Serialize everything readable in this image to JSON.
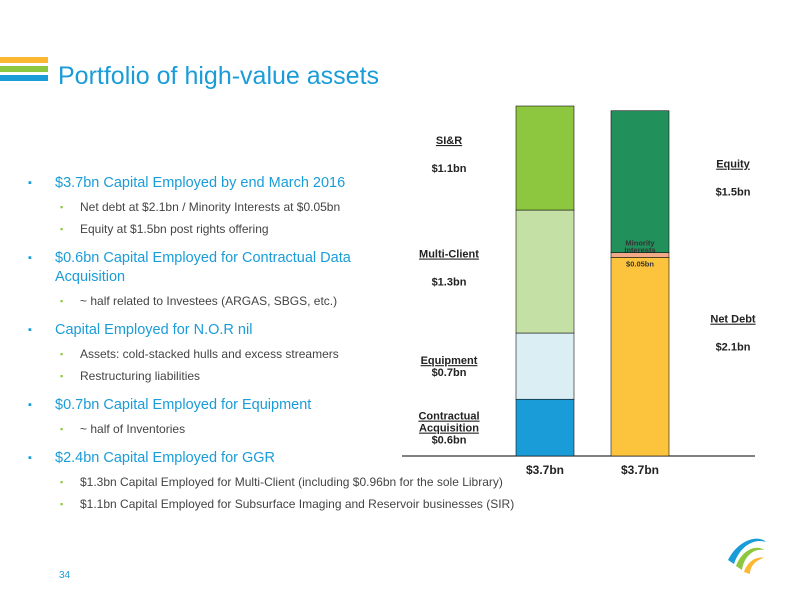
{
  "slide": {
    "title": "Portfolio of high-value assets",
    "page_number": "34",
    "title_bar_colors": [
      "#fcb831",
      "#8dc63f",
      "#1a9cd8"
    ]
  },
  "bullets": [
    {
      "text": "$3.7bn Capital Employed by end March 2016",
      "subs": [
        "Net debt at $2.1bn / Minority Interests at $0.05bn",
        "Equity at $1.5bn post rights offering"
      ]
    },
    {
      "text": "$0.6bn Capital Employed for Contractual Data Acquisition",
      "subs": [
        "~ half related to Investees (ARGAS, SBGS, etc.)"
      ]
    },
    {
      "text": "Capital Employed for N.O.R nil",
      "subs": [
        "Assets: cold-stacked hulls and excess streamers",
        "Restructuring liabilities"
      ]
    },
    {
      "text": "$0.7bn Capital Employed for Equipment",
      "subs": [
        "~ half of Inventories"
      ]
    },
    {
      "text": "$2.4bn Capital Employed for GGR",
      "subs": [
        "$1.3bn Capital Employed for Multi-Client (including $0.96bn for the sole Library)",
        "$1.1bn Capital Employed for Subsurface Imaging and Reservoir businesses (SIR)"
      ]
    }
  ],
  "chart_data": {
    "type": "bar",
    "stacked": true,
    "categories": [
      "$3.7bn",
      "$3.7bn"
    ],
    "ylim": [
      0,
      3.7
    ],
    "series": [
      {
        "name": "Contractual Acquisition",
        "value_label": "$0.6bn",
        "stack": 0,
        "value": 0.6,
        "color": "#1a9cd8"
      },
      {
        "name": "Equipment",
        "value_label": "$0.7bn",
        "stack": 0,
        "value": 0.7,
        "color": "#daeef3"
      },
      {
        "name": "Multi-Client",
        "value_label": "$1.3bn",
        "stack": 0,
        "value": 1.3,
        "color": "#c5e0a4"
      },
      {
        "name": "SI&R",
        "value_label": "$1.1bn",
        "stack": 0,
        "value": 1.1,
        "color": "#8dc63f"
      },
      {
        "name": "Net Debt",
        "value_label": "$2.1bn",
        "stack": 1,
        "value": 2.1,
        "color": "#fcc43d"
      },
      {
        "name": "Minority Interests",
        "value_label": "$0.05bn",
        "stack": 1,
        "value": 0.05,
        "color": "#f2a98a"
      },
      {
        "name": "Equity",
        "value_label": "$1.5bn",
        "stack": 1,
        "value": 1.5,
        "color": "#21905a"
      }
    ]
  }
}
